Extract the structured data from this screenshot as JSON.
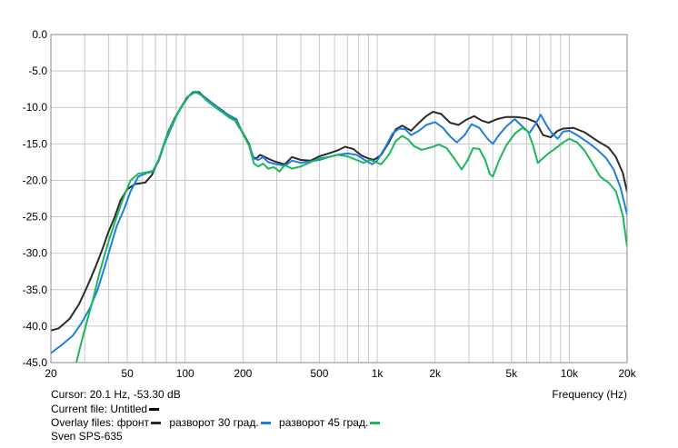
{
  "chart_data": {
    "type": "line",
    "xscale": "log",
    "xlim": [
      20,
      20000
    ],
    "ylim": [
      -45,
      0
    ],
    "xlabel": "Frequency (Hz)",
    "ylabel": "",
    "grid": true,
    "xticks": [
      {
        "value": 20,
        "label": "20"
      },
      {
        "value": 50,
        "label": "50"
      },
      {
        "value": 100,
        "label": "100"
      },
      {
        "value": 200,
        "label": "200"
      },
      {
        "value": 500,
        "label": "500"
      },
      {
        "value": 1000,
        "label": "1k"
      },
      {
        "value": 2000,
        "label": "2k"
      },
      {
        "value": 5000,
        "label": "5k"
      },
      {
        "value": 10000,
        "label": "10k"
      },
      {
        "value": 20000,
        "label": "20k"
      }
    ],
    "yticks": [
      {
        "value": 0,
        "label": "0.0"
      },
      {
        "value": -5,
        "label": "-5.0"
      },
      {
        "value": -10,
        "label": "-10.0"
      },
      {
        "value": -15,
        "label": "-15.0"
      },
      {
        "value": -20,
        "label": "-20.0"
      },
      {
        "value": -25,
        "label": "-25.0"
      },
      {
        "value": -30,
        "label": "-30.0"
      },
      {
        "value": -35,
        "label": "-35.0"
      },
      {
        "value": -40,
        "label": "-40.0"
      },
      {
        "value": -45,
        "label": "-45.0"
      }
    ],
    "series": [
      {
        "name": "фронт",
        "color": "#2b2b2b",
        "points": [
          [
            20,
            -40.6
          ],
          [
            22,
            -40.3
          ],
          [
            25,
            -39
          ],
          [
            28,
            -37
          ],
          [
            31,
            -34.5
          ],
          [
            34,
            -32
          ],
          [
            37,
            -29.5
          ],
          [
            40,
            -27
          ],
          [
            43,
            -25
          ],
          [
            46,
            -22.8
          ],
          [
            50,
            -21.2
          ],
          [
            55,
            -20.5
          ],
          [
            62,
            -20.3
          ],
          [
            67,
            -19.3
          ],
          [
            72,
            -17.5
          ],
          [
            77,
            -15.3
          ],
          [
            82,
            -13.2
          ],
          [
            88,
            -11.5
          ],
          [
            95,
            -10
          ],
          [
            102,
            -8.7
          ],
          [
            110,
            -7.9
          ],
          [
            118,
            -7.9
          ],
          [
            125,
            -8.5
          ],
          [
            135,
            -9.2
          ],
          [
            150,
            -10.1
          ],
          [
            165,
            -10.9
          ],
          [
            180,
            -11.5
          ],
          [
            190,
            -12.6
          ],
          [
            200,
            -13.5
          ],
          [
            215,
            -15
          ],
          [
            225,
            -16.8
          ],
          [
            235,
            -17
          ],
          [
            245,
            -16.5
          ],
          [
            260,
            -16.8
          ],
          [
            280,
            -17.2
          ],
          [
            300,
            -17.5
          ],
          [
            330,
            -17.8
          ],
          [
            360,
            -16.8
          ],
          [
            400,
            -17.2
          ],
          [
            450,
            -17.3
          ],
          [
            500,
            -16.7
          ],
          [
            560,
            -16.3
          ],
          [
            620,
            -15.9
          ],
          [
            680,
            -15.4
          ],
          [
            750,
            -15.7
          ],
          [
            830,
            -16.6
          ],
          [
            900,
            -17
          ],
          [
            960,
            -17.2
          ],
          [
            1050,
            -16.5
          ],
          [
            1150,
            -14.8
          ],
          [
            1250,
            -13
          ],
          [
            1350,
            -12.5
          ],
          [
            1500,
            -13.2
          ],
          [
            1650,
            -12.1
          ],
          [
            1800,
            -11.2
          ],
          [
            1950,
            -10.6
          ],
          [
            2150,
            -10.9
          ],
          [
            2400,
            -12.1
          ],
          [
            2650,
            -12.4
          ],
          [
            2900,
            -11.7
          ],
          [
            3200,
            -11.2
          ],
          [
            3500,
            -11.8
          ],
          [
            3800,
            -12.1
          ],
          [
            4200,
            -11.6
          ],
          [
            4700,
            -11.3
          ],
          [
            5300,
            -11.3
          ],
          [
            6000,
            -11.5
          ],
          [
            6700,
            -12
          ],
          [
            7300,
            -13.8
          ],
          [
            8000,
            -14.1
          ],
          [
            8700,
            -13.2
          ],
          [
            9300,
            -12.9
          ],
          [
            10500,
            -12.8
          ],
          [
            12000,
            -13.4
          ],
          [
            14000,
            -14.6
          ],
          [
            16000,
            -15.5
          ],
          [
            17500,
            -16.8
          ],
          [
            19000,
            -19
          ],
          [
            20000,
            -21.6
          ]
        ]
      },
      {
        "name": "разворот 30 град.",
        "color": "#1e7fe0",
        "points": [
          [
            20,
            -43.7
          ],
          [
            23,
            -42.5
          ],
          [
            26,
            -41.3
          ],
          [
            29,
            -39.5
          ],
          [
            32,
            -37.5
          ],
          [
            35,
            -35
          ],
          [
            38,
            -32
          ],
          [
            41,
            -29
          ],
          [
            44,
            -26.3
          ],
          [
            48,
            -24
          ],
          [
            52,
            -21.5
          ],
          [
            57,
            -19.5
          ],
          [
            63,
            -19
          ],
          [
            68,
            -18.8
          ],
          [
            73,
            -17.3
          ],
          [
            78,
            -15
          ],
          [
            84,
            -13
          ],
          [
            90,
            -11.2
          ],
          [
            97,
            -9.7
          ],
          [
            105,
            -8.4
          ],
          [
            113,
            -7.8
          ],
          [
            121,
            -8.2
          ],
          [
            130,
            -8.9
          ],
          [
            142,
            -9.6
          ],
          [
            155,
            -10.5
          ],
          [
            170,
            -11.1
          ],
          [
            185,
            -11.6
          ],
          [
            200,
            -13.6
          ],
          [
            215,
            -15.2
          ],
          [
            228,
            -17
          ],
          [
            240,
            -17.2
          ],
          [
            255,
            -16.8
          ],
          [
            270,
            -17.5
          ],
          [
            300,
            -17.8
          ],
          [
            330,
            -18
          ],
          [
            360,
            -17.3
          ],
          [
            400,
            -17.6
          ],
          [
            450,
            -17.4
          ],
          [
            500,
            -17.2
          ],
          [
            560,
            -16.8
          ],
          [
            620,
            -16.5
          ],
          [
            700,
            -16.3
          ],
          [
            780,
            -16.5
          ],
          [
            860,
            -17.2
          ],
          [
            940,
            -17.8
          ],
          [
            1000,
            -17.3
          ],
          [
            1100,
            -15.5
          ],
          [
            1200,
            -13.6
          ],
          [
            1300,
            -12.9
          ],
          [
            1400,
            -13
          ],
          [
            1500,
            -13.8
          ],
          [
            1650,
            -13.2
          ],
          [
            1800,
            -12.4
          ],
          [
            2000,
            -12
          ],
          [
            2200,
            -12.8
          ],
          [
            2400,
            -14
          ],
          [
            2600,
            -14.8
          ],
          [
            2850,
            -13.8
          ],
          [
            3100,
            -12.3
          ],
          [
            3400,
            -12.8
          ],
          [
            3750,
            -14.3
          ],
          [
            4000,
            -15
          ],
          [
            4300,
            -13.8
          ],
          [
            4700,
            -12.6
          ],
          [
            5200,
            -11.6
          ],
          [
            5700,
            -12.6
          ],
          [
            6200,
            -13.5
          ],
          [
            6700,
            -12.2
          ],
          [
            7100,
            -11
          ],
          [
            7600,
            -12.4
          ],
          [
            8100,
            -13.5
          ],
          [
            8700,
            -14.3
          ],
          [
            9300,
            -13.3
          ],
          [
            10000,
            -13.2
          ],
          [
            11000,
            -13.8
          ],
          [
            12500,
            -14.8
          ],
          [
            14000,
            -15.8
          ],
          [
            15500,
            -16.9
          ],
          [
            17000,
            -18.5
          ],
          [
            18500,
            -21
          ],
          [
            20000,
            -24.7
          ]
        ]
      },
      {
        "name": "разворот 45 град.",
        "color": "#19b85a",
        "points": [
          [
            26,
            -47
          ],
          [
            28,
            -43.5
          ],
          [
            30,
            -40.5
          ],
          [
            33,
            -36.5
          ],
          [
            36,
            -32.5
          ],
          [
            40,
            -28.3
          ],
          [
            44,
            -25
          ],
          [
            48,
            -22.2
          ],
          [
            52,
            -20
          ],
          [
            57,
            -19.1
          ],
          [
            63,
            -18.9
          ],
          [
            68,
            -18.7
          ],
          [
            73,
            -17.1
          ],
          [
            78,
            -14.8
          ],
          [
            84,
            -12.7
          ],
          [
            90,
            -11.1
          ],
          [
            97,
            -9.6
          ],
          [
            105,
            -8.4
          ],
          [
            113,
            -7.9
          ],
          [
            121,
            -8.3
          ],
          [
            130,
            -9.1
          ],
          [
            142,
            -9.9
          ],
          [
            155,
            -10.6
          ],
          [
            170,
            -11.4
          ],
          [
            185,
            -11.9
          ],
          [
            200,
            -13.6
          ],
          [
            215,
            -15.2
          ],
          [
            228,
            -17.7
          ],
          [
            240,
            -18.1
          ],
          [
            255,
            -17.7
          ],
          [
            270,
            -18.4
          ],
          [
            290,
            -18.2
          ],
          [
            310,
            -18.8
          ],
          [
            330,
            -17.9
          ],
          [
            360,
            -18.4
          ],
          [
            400,
            -18.1
          ],
          [
            450,
            -17.5
          ],
          [
            500,
            -17
          ],
          [
            560,
            -16.8
          ],
          [
            620,
            -16.5
          ],
          [
            700,
            -16.7
          ],
          [
            780,
            -17.2
          ],
          [
            850,
            -17.6
          ],
          [
            920,
            -17.2
          ],
          [
            980,
            -17.5
          ],
          [
            1050,
            -17.8
          ],
          [
            1150,
            -16.5
          ],
          [
            1250,
            -14.6
          ],
          [
            1350,
            -13.9
          ],
          [
            1450,
            -14.4
          ],
          [
            1550,
            -15.3
          ],
          [
            1700,
            -15.8
          ],
          [
            1900,
            -15.5
          ],
          [
            2100,
            -15.1
          ],
          [
            2300,
            -15.6
          ],
          [
            2550,
            -17.2
          ],
          [
            2750,
            -18.5
          ],
          [
            2950,
            -17.3
          ],
          [
            3150,
            -15.6
          ],
          [
            3400,
            -15.7
          ],
          [
            3650,
            -17.2
          ],
          [
            3850,
            -19.1
          ],
          [
            4000,
            -19.5
          ],
          [
            4300,
            -17.3
          ],
          [
            4700,
            -15.2
          ],
          [
            5200,
            -13.6
          ],
          [
            5700,
            -12.8
          ],
          [
            6100,
            -13.3
          ],
          [
            6500,
            -15.3
          ],
          [
            6850,
            -17.6
          ],
          [
            7200,
            -17.1
          ],
          [
            7800,
            -16.3
          ],
          [
            8500,
            -15.6
          ],
          [
            9300,
            -14.8
          ],
          [
            10000,
            -14.3
          ],
          [
            11000,
            -14.8
          ],
          [
            12000,
            -15.9
          ],
          [
            13000,
            -17.4
          ],
          [
            14500,
            -19.5
          ],
          [
            16000,
            -20.3
          ],
          [
            17500,
            -21.5
          ],
          [
            19000,
            -24.8
          ],
          [
            20000,
            -29.1
          ]
        ]
      }
    ]
  },
  "info": {
    "cursor": "Cursor: 20.1 Hz, -53.30 dB",
    "frequency_label": "Frequency (Hz)",
    "current_file_label": "Current file:",
    "current_file_value": "Untitled",
    "current_file_color": "#000000",
    "overlay_label": "Overlay files:",
    "overlay_files": [
      "фронт",
      "разворот 30 град.",
      "разворот 45 град."
    ],
    "title": "Sven SPS-635"
  }
}
